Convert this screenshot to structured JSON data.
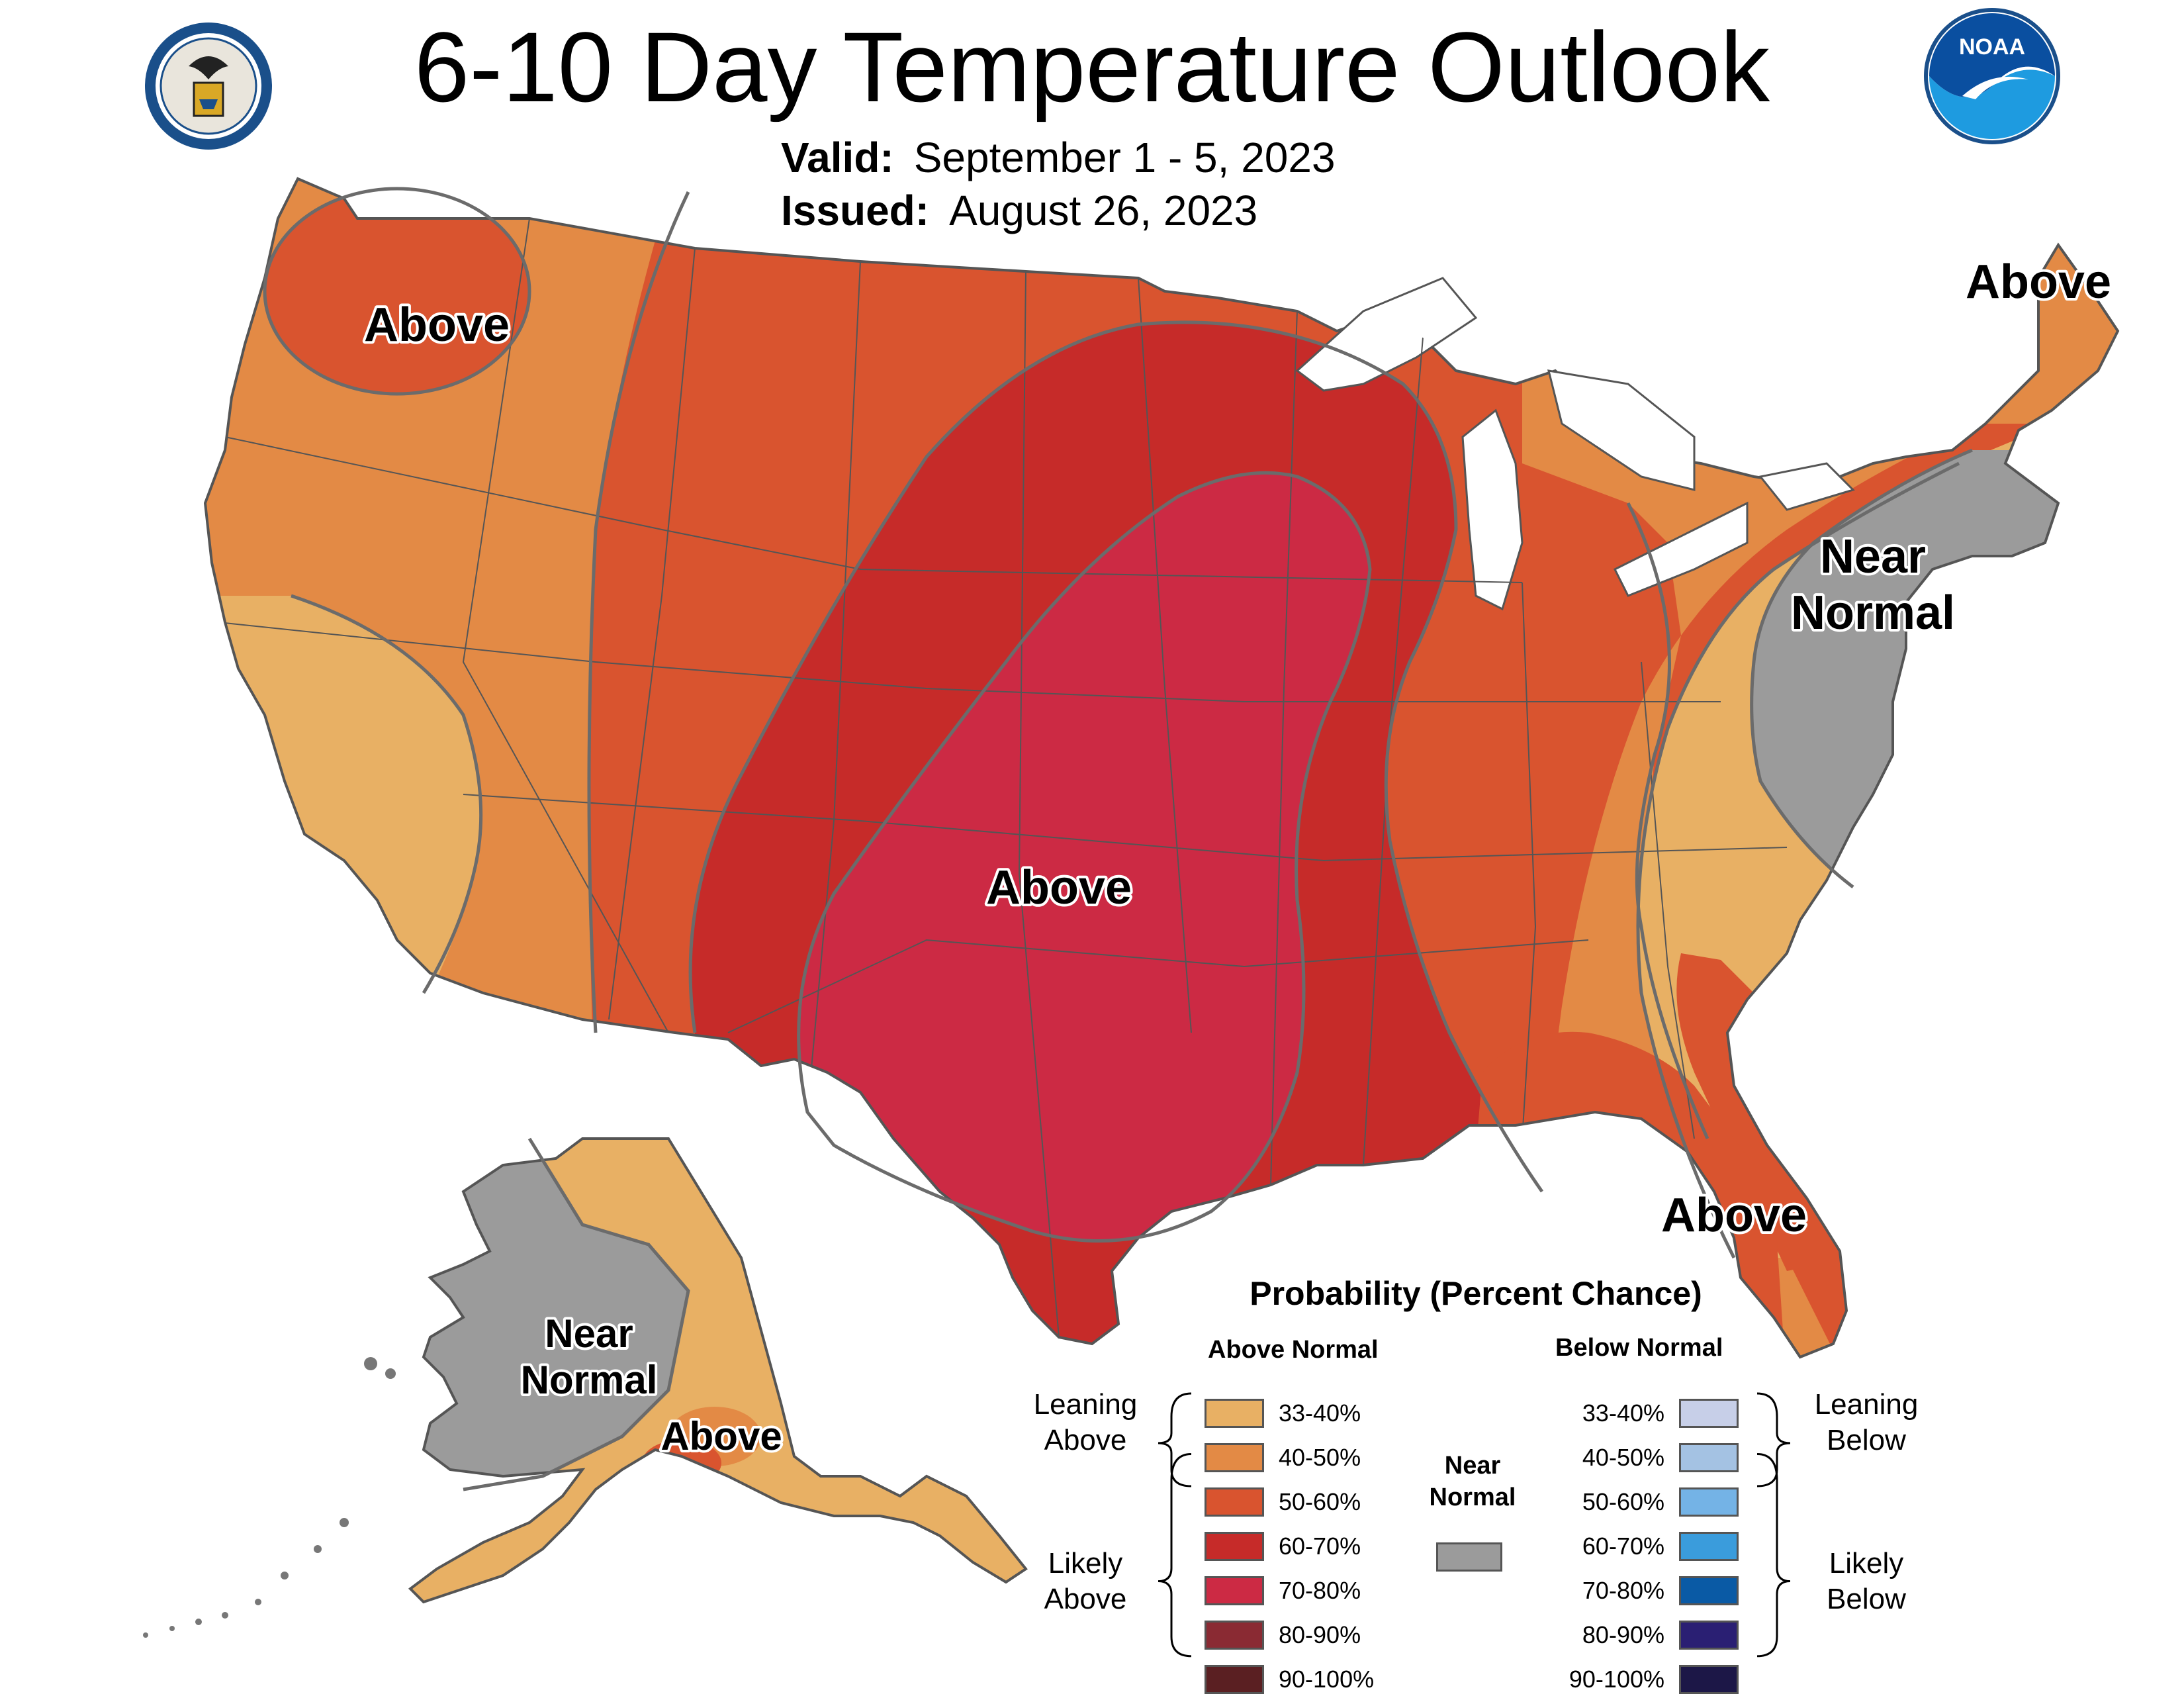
{
  "header": {
    "title": "6-10 Day Temperature Outlook",
    "valid_label": "Valid:",
    "valid_value": "September 1 - 5, 2023",
    "issued_label": "Issued:",
    "issued_value": "August 26, 2023",
    "left_logo": "department-of-commerce-seal",
    "right_logo": "noaa-logo",
    "noaa_text": "NOAA"
  },
  "map": {
    "region_labels": {
      "pacific_nw": "Above",
      "central": "Above",
      "new_england": "Above",
      "northeast": [
        "Near",
        "Normal"
      ],
      "florida": "Above",
      "alaska_west": [
        "Near",
        "Normal"
      ],
      "alaska_south": "Above"
    }
  },
  "legend": {
    "title": "Probability (Percent Chance)",
    "above_heading": "Above Normal",
    "below_heading": "Below Normal",
    "near_normal_label": [
      "Near",
      "Normal"
    ],
    "near_normal_color": "#9b9b9b",
    "leaning_above": [
      "Leaning",
      "Above"
    ],
    "likely_above": [
      "Likely",
      "Above"
    ],
    "leaning_below": [
      "Leaning",
      "Below"
    ],
    "likely_below": [
      "Likely",
      "Below"
    ],
    "above": [
      {
        "range": "33-40%",
        "color": "#e8b064"
      },
      {
        "range": "40-50%",
        "color": "#e38a45"
      },
      {
        "range": "50-60%",
        "color": "#d9542f"
      },
      {
        "range": "60-70%",
        "color": "#c62b29"
      },
      {
        "range": "70-80%",
        "color": "#cc2a44"
      },
      {
        "range": "80-90%",
        "color": "#8a2a33"
      },
      {
        "range": "90-100%",
        "color": "#5a1f22"
      }
    ],
    "below": [
      {
        "range": "33-40%",
        "color": "#c7cfe8"
      },
      {
        "range": "40-50%",
        "color": "#a4c2e3"
      },
      {
        "range": "50-60%",
        "color": "#74b3e6"
      },
      {
        "range": "60-70%",
        "color": "#3a9cdc"
      },
      {
        "range": "70-80%",
        "color": "#0a5aa5"
      },
      {
        "range": "80-90%",
        "color": "#2a1f73"
      },
      {
        "range": "90-100%",
        "color": "#1c1747"
      }
    ]
  }
}
